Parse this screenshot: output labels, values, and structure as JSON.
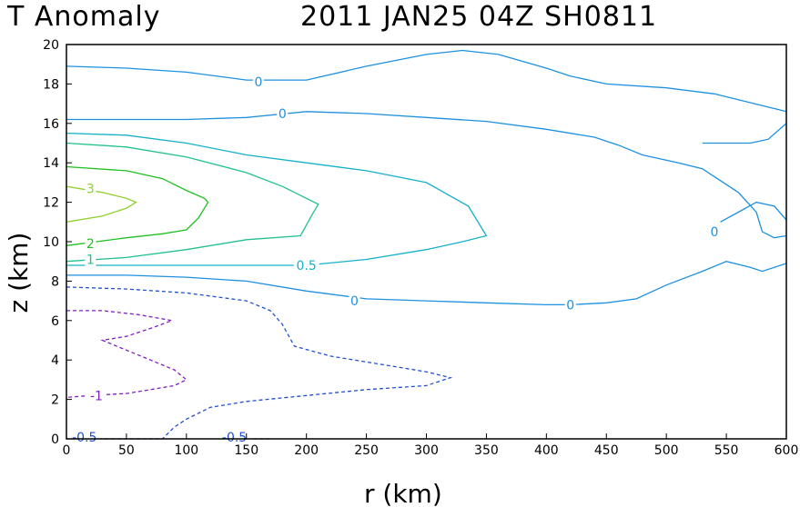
{
  "title_left": "T Anomaly",
  "title_right": "2011 JAN25 04Z   SH0811",
  "chart_data": {
    "type": "contour",
    "xlabel": "r (km)",
    "ylabel": "z (km)",
    "xlim": [
      0,
      600
    ],
    "ylim": [
      0,
      20
    ],
    "xticks": [
      0,
      50,
      100,
      150,
      200,
      250,
      300,
      350,
      400,
      450,
      500,
      550,
      600
    ],
    "yticks": [
      0,
      2,
      4,
      6,
      8,
      10,
      12,
      14,
      16,
      18,
      20
    ],
    "grid": false,
    "contours": [
      {
        "level": "0",
        "color": "#1e90e0",
        "dashed": false,
        "points": [
          [
            0,
            18.9
          ],
          [
            50,
            18.8
          ],
          [
            100,
            18.6
          ],
          [
            150,
            18.2
          ],
          [
            200,
            18.2
          ],
          [
            250,
            18.9
          ],
          [
            300,
            19.5
          ],
          [
            330,
            19.7
          ],
          [
            360,
            19.5
          ],
          [
            400,
            18.8
          ],
          [
            420,
            18.4
          ],
          [
            450,
            18.0
          ],
          [
            500,
            17.8
          ],
          [
            540,
            17.5
          ],
          [
            560,
            17.2
          ],
          [
            580,
            16.9
          ],
          [
            600,
            16.6
          ]
        ],
        "labels": [
          {
            "text": "0",
            "x": 160,
            "y": 18.1
          }
        ]
      },
      {
        "level": "0",
        "color": "#1e90e0",
        "dashed": false,
        "points": [
          [
            0,
            16.2
          ],
          [
            50,
            16.2
          ],
          [
            100,
            16.2
          ],
          [
            150,
            16.3
          ],
          [
            200,
            16.6
          ],
          [
            250,
            16.5
          ],
          [
            300,
            16.3
          ],
          [
            350,
            16.1
          ],
          [
            400,
            15.7
          ],
          [
            440,
            15.3
          ],
          [
            460,
            14.9
          ],
          [
            480,
            14.4
          ],
          [
            510,
            14.0
          ],
          [
            530,
            13.7
          ],
          [
            540,
            13.3
          ],
          [
            560,
            12.5
          ],
          [
            575,
            11.5
          ],
          [
            580,
            10.5
          ],
          [
            590,
            10.2
          ],
          [
            600,
            10.3
          ]
        ],
        "labels": [
          {
            "text": "0",
            "x": 180,
            "y": 16.5
          },
          {
            "text": "0",
            "x": 540,
            "y": 10.5
          }
        ]
      },
      {
        "level": "0",
        "color": "#1e90e0",
        "dashed": false,
        "points": [
          [
            0,
            8.3
          ],
          [
            50,
            8.3
          ],
          [
            100,
            8.2
          ],
          [
            150,
            8.0
          ],
          [
            200,
            7.5
          ],
          [
            250,
            7.1
          ],
          [
            300,
            7.0
          ],
          [
            350,
            6.9
          ],
          [
            400,
            6.8
          ],
          [
            420,
            6.8
          ],
          [
            450,
            6.9
          ],
          [
            475,
            7.1
          ],
          [
            500,
            7.8
          ],
          [
            530,
            8.5
          ],
          [
            550,
            9.0
          ],
          [
            570,
            8.7
          ],
          [
            580,
            8.5
          ],
          [
            600,
            8.9
          ]
        ],
        "labels": [
          {
            "text": "0",
            "x": 240,
            "y": 7.0
          },
          {
            "text": "0",
            "x": 420,
            "y": 6.8
          }
        ]
      },
      {
        "level": "0",
        "color": "#1e90e0",
        "dashed": false,
        "points": [
          [
            530,
            15.0
          ],
          [
            550,
            15.0
          ],
          [
            570,
            15.0
          ],
          [
            585,
            15.2
          ],
          [
            600,
            16.0
          ]
        ],
        "labels": []
      },
      {
        "level": "0",
        "color": "#1e90e0",
        "dashed": false,
        "points": [
          [
            545,
            11.0
          ],
          [
            560,
            11.5
          ],
          [
            575,
            12.0
          ],
          [
            590,
            11.8
          ],
          [
            600,
            11.1
          ]
        ],
        "labels": []
      },
      {
        "level": "0.5",
        "color": "#16b0c8",
        "dashed": false,
        "points": [
          [
            0,
            15.5
          ],
          [
            50,
            15.4
          ],
          [
            100,
            15.0
          ],
          [
            150,
            14.4
          ],
          [
            200,
            14.0
          ],
          [
            250,
            13.6
          ],
          [
            300,
            13.0
          ],
          [
            335,
            11.8
          ],
          [
            350,
            10.3
          ],
          [
            330,
            10.0
          ],
          [
            300,
            9.6
          ],
          [
            250,
            9.1
          ],
          [
            200,
            8.8
          ],
          [
            150,
            8.8
          ],
          [
            100,
            8.8
          ],
          [
            50,
            8.8
          ],
          [
            0,
            8.8
          ]
        ],
        "labels": [
          {
            "text": "0.5",
            "x": 200,
            "y": 8.8
          }
        ]
      },
      {
        "level": "1",
        "color": "#20c090",
        "dashed": false,
        "points": [
          [
            0,
            15.0
          ],
          [
            50,
            14.8
          ],
          [
            100,
            14.3
          ],
          [
            150,
            13.5
          ],
          [
            180,
            12.8
          ],
          [
            200,
            12.2
          ],
          [
            210,
            11.9
          ],
          [
            205,
            11.4
          ],
          [
            195,
            10.3
          ],
          [
            150,
            10.1
          ],
          [
            100,
            9.6
          ],
          [
            50,
            9.2
          ],
          [
            0,
            9.0
          ]
        ],
        "labels": [
          {
            "text": "1",
            "x": 20,
            "y": 9.1
          }
        ]
      },
      {
        "level": "2",
        "color": "#20c020",
        "dashed": false,
        "points": [
          [
            0,
            13.8
          ],
          [
            50,
            13.6
          ],
          [
            80,
            13.2
          ],
          [
            100,
            12.6
          ],
          [
            115,
            12.2
          ],
          [
            118,
            12.0
          ],
          [
            110,
            11.2
          ],
          [
            100,
            10.6
          ],
          [
            80,
            10.4
          ],
          [
            50,
            10.2
          ],
          [
            0,
            9.8
          ]
        ],
        "labels": [
          {
            "text": "2",
            "x": 20,
            "y": 9.9
          }
        ]
      },
      {
        "level": "3",
        "color": "#90d030",
        "dashed": false,
        "points": [
          [
            0,
            12.8
          ],
          [
            30,
            12.5
          ],
          [
            50,
            12.2
          ],
          [
            58,
            12.0
          ],
          [
            50,
            11.7
          ],
          [
            30,
            11.3
          ],
          [
            0,
            11.0
          ]
        ],
        "labels": [
          {
            "text": "3",
            "x": 20,
            "y": 12.7
          }
        ]
      },
      {
        "level": "-0.5",
        "color": "#2050d0",
        "dashed": true,
        "points": [
          [
            0,
            7.7
          ],
          [
            50,
            7.6
          ],
          [
            100,
            7.4
          ],
          [
            150,
            7.0
          ],
          [
            170,
            6.5
          ],
          [
            180,
            5.8
          ],
          [
            190,
            4.7
          ],
          [
            220,
            4.2
          ],
          [
            260,
            3.8
          ],
          [
            300,
            3.4
          ],
          [
            320,
            3.1
          ],
          [
            300,
            2.7
          ],
          [
            250,
            2.5
          ],
          [
            200,
            2.2
          ],
          [
            150,
            1.9
          ],
          [
            120,
            1.6
          ],
          [
            100,
            1.0
          ],
          [
            90,
            0.6
          ],
          [
            80,
            0.0
          ]
        ],
        "labels": [
          {
            "text": "-0.5",
            "x": 140,
            "y": 0.1
          }
        ]
      },
      {
        "level": "-0.5",
        "color": "#2050d0",
        "dashed": true,
        "points": [
          [
            0,
            0.0
          ],
          [
            80,
            0.0
          ]
        ],
        "labels": [
          {
            "text": "-0.5",
            "x": 15,
            "y": 0.1
          }
        ]
      },
      {
        "level": "-0.5",
        "color": "#2050d0",
        "dashed": true,
        "points": [
          [
            145,
            0.0
          ],
          [
            170,
            0.0
          ]
        ],
        "labels": []
      },
      {
        "level": "-1",
        "color": "#8020c0",
        "dashed": true,
        "points": [
          [
            0,
            6.5
          ],
          [
            30,
            6.5
          ],
          [
            60,
            6.3
          ],
          [
            88,
            6.0
          ],
          [
            70,
            5.6
          ],
          [
            50,
            5.2
          ],
          [
            30,
            5.0
          ],
          [
            50,
            4.5
          ],
          [
            70,
            4.0
          ],
          [
            90,
            3.5
          ],
          [
            100,
            3.0
          ],
          [
            90,
            2.7
          ],
          [
            70,
            2.5
          ],
          [
            50,
            2.3
          ],
          [
            20,
            2.2
          ],
          [
            0,
            2.1
          ]
        ],
        "labels": [
          {
            "text": "-1",
            "x": 25,
            "y": 2.2
          }
        ]
      }
    ]
  }
}
